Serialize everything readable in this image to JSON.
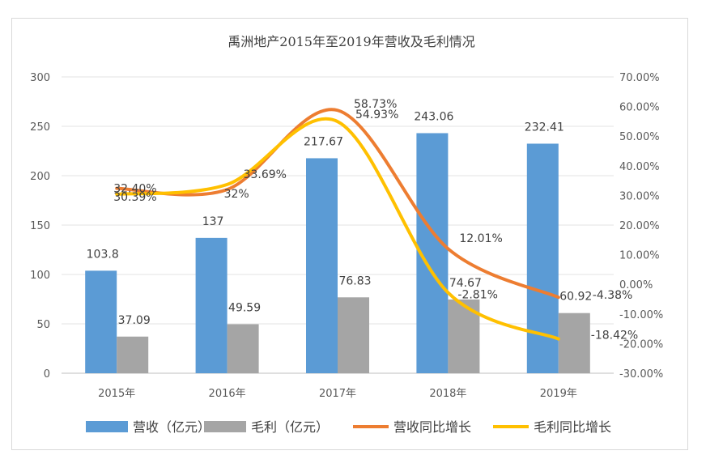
{
  "chart_data": {
    "type": "bar+line",
    "title": "禹洲地产2015年至2019年营收及毛利情况",
    "categories": [
      "2015年",
      "2016年",
      "2017年",
      "2018年",
      "2019年"
    ],
    "series": [
      {
        "name": "营收（亿元）",
        "type": "bar",
        "axis": "left",
        "color": "#5b9bd5",
        "values": [
          103.8,
          137,
          217.67,
          243.06,
          232.41
        ],
        "labels": [
          "103.8",
          "137",
          "217.67",
          "243.06",
          "232.41"
        ]
      },
      {
        "name": "毛利（亿元）",
        "type": "bar",
        "axis": "left",
        "color": "#a5a5a5",
        "values": [
          37.09,
          49.59,
          76.83,
          74.67,
          60.92
        ],
        "labels": [
          "37.09",
          "49.59",
          "76.83",
          "74.67",
          "60.92"
        ]
      },
      {
        "name": "营收同比增长",
        "type": "line",
        "axis": "right",
        "color": "#ed7d31",
        "values": [
          32.4,
          32,
          58.73,
          12.01,
          -4.38
        ],
        "labels": [
          "32.40%",
          "32%",
          "58.73%",
          "12.01%",
          "-4.38%"
        ]
      },
      {
        "name": "毛利同比增长",
        "type": "line",
        "axis": "right",
        "color": "#ffc000",
        "values": [
          30.39,
          33.69,
          54.93,
          -2.81,
          -18.42
        ],
        "labels": [
          "30.39%",
          "33.69%",
          "54.93%",
          "-2.81%",
          "-18.42%"
        ]
      }
    ],
    "y_left": {
      "min": 0,
      "max": 300,
      "ticks": [
        "300",
        "250",
        "200",
        "150",
        "100",
        "50",
        "0"
      ]
    },
    "y_right": {
      "min": -30,
      "max": 70,
      "ticks": [
        "70.00%",
        "60.00%",
        "50.00%",
        "40.00%",
        "30.00%",
        "20.00%",
        "10.00%",
        "0.00%",
        "-10.00%",
        "-20.00%",
        "-30.00%"
      ]
    },
    "grid": true,
    "legend": "bottom"
  }
}
